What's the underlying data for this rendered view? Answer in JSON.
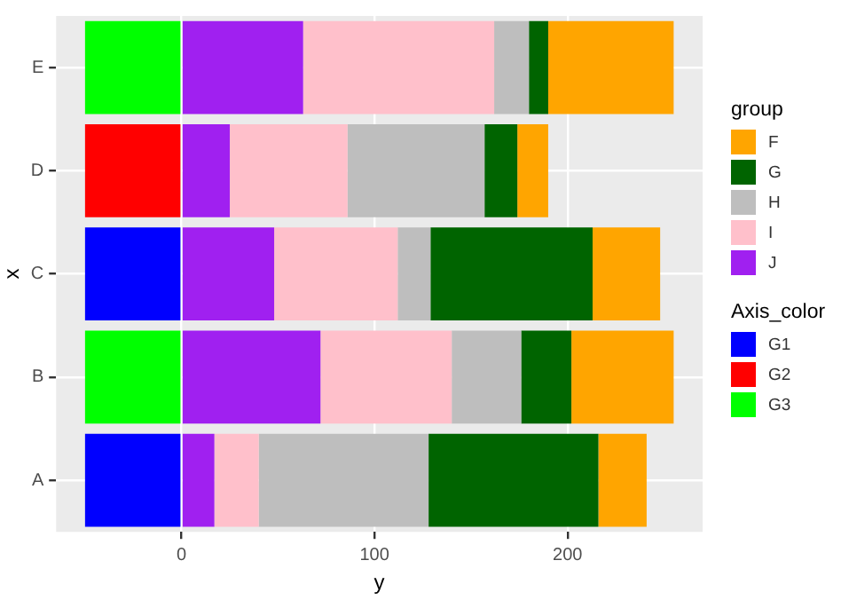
{
  "chart_data": {
    "type": "bar",
    "orientation": "horizontal",
    "stacked": true,
    "xlabel": "y",
    "ylabel": "x",
    "legend_title": [
      "group",
      "Axis_color"
    ],
    "categories": [
      "E",
      "D",
      "C",
      "B",
      "A"
    ],
    "series": [
      {
        "name": "J",
        "color": "#a020f0",
        "values": [
          63,
          25,
          48,
          72,
          17
        ]
      },
      {
        "name": "I",
        "color": "#ffc0cb",
        "values": [
          99,
          61,
          64,
          68,
          23
        ]
      },
      {
        "name": "H",
        "color": "#bebebe",
        "values": [
          18,
          71,
          17,
          36,
          88
        ]
      },
      {
        "name": "G",
        "color": "#006400",
        "values": [
          10,
          17,
          84,
          26,
          88
        ]
      },
      {
        "name": "F",
        "color": "#ffa500",
        "values": [
          65,
          16,
          35,
          53,
          25
        ]
      },
      {
        "name": "G1",
        "color": "#0000ff",
        "values": [
          null,
          null,
          -50,
          null,
          -50
        ]
      },
      {
        "name": "G2",
        "color": "#ff0000",
        "values": [
          null,
          -50,
          null,
          null,
          null
        ]
      },
      {
        "name": "G3",
        "color": "#00ff00",
        "values": [
          -50,
          null,
          null,
          -50,
          null
        ]
      }
    ],
    "xlim": [
      -65,
      270
    ],
    "xticks": [
      0,
      100,
      200
    ],
    "grid": true,
    "legend": "right"
  }
}
